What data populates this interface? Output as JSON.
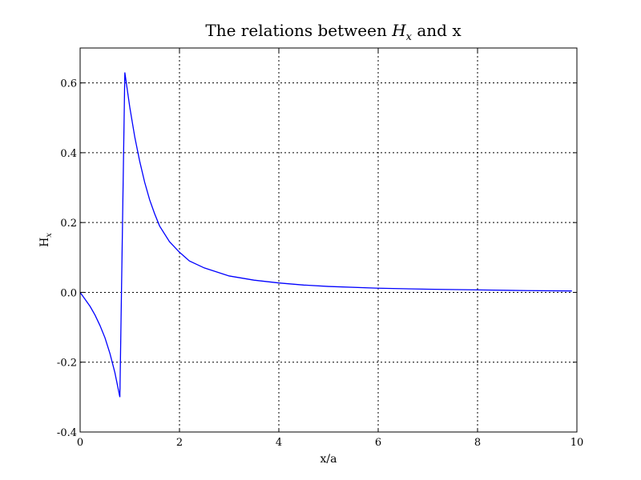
{
  "chart_data": {
    "type": "line",
    "title": {
      "prefix": "The relations between ",
      "var": "H",
      "sub": "x",
      "suffix": " and x"
    },
    "xlabel": "x/a",
    "ylabel": {
      "var": "H",
      "sub": "x"
    },
    "xlim": [
      0,
      10
    ],
    "ylim": [
      -0.4,
      0.7
    ],
    "xticks": [
      0,
      2,
      4,
      6,
      8,
      10
    ],
    "xtick_labels": [
      "0",
      "2",
      "4",
      "6",
      "8",
      "10"
    ],
    "yticks": [
      -0.4,
      -0.2,
      0.0,
      0.2,
      0.4,
      0.6
    ],
    "ytick_labels": [
      "-0.4",
      "-0.2",
      "0.0",
      "0.2",
      "0.4",
      "0.6"
    ],
    "grid": true,
    "series": [
      {
        "color": "#0000ff",
        "x": [
          0,
          0.1,
          0.2,
          0.3,
          0.4,
          0.5,
          0.6,
          0.7,
          0.8,
          0.9,
          1.0,
          1.1,
          1.2,
          1.3,
          1.4,
          1.5,
          1.6,
          1.8,
          2.0,
          2.2,
          2.5,
          3.0,
          3.5,
          4.0,
          4.5,
          5.0,
          6.0,
          7.0,
          8.0,
          9.0,
          9.9
        ],
        "y": [
          0,
          -0.02,
          -0.04,
          -0.065,
          -0.095,
          -0.13,
          -0.175,
          -0.23,
          -0.3,
          0.63,
          0.53,
          0.445,
          0.375,
          0.315,
          0.265,
          0.225,
          0.19,
          0.145,
          0.115,
          0.09,
          0.07,
          0.047,
          0.035,
          0.027,
          0.021,
          0.017,
          0.012,
          0.009,
          0.007,
          0.005,
          0.004
        ]
      }
    ]
  }
}
